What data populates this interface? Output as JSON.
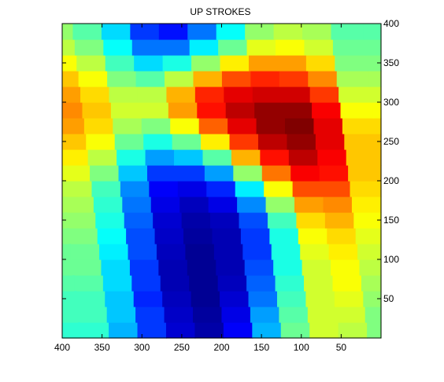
{
  "chart_data": {
    "type": "heatmap",
    "title": "UP STROKES",
    "xlabel": "",
    "ylabel": "",
    "colormap": "jet",
    "x_axis_reversed": true,
    "xlim": [
      400,
      0
    ],
    "ylim": [
      0,
      400
    ],
    "x_ticks": [
      400,
      350,
      300,
      250,
      200,
      150,
      100,
      50
    ],
    "y_ticks": [
      50,
      100,
      150,
      200,
      250,
      300,
      350,
      400
    ],
    "y_tick_labels_side": "right",
    "grid": false,
    "legend": "none",
    "field_description_units": "normalized value 0 (dark blue) to 1 (dark red)",
    "columns_x_centers": [
      382,
      346,
      310,
      274,
      238,
      202,
      166,
      130,
      94,
      58,
      22
    ],
    "rows_y_centers": [
      10,
      30,
      50,
      70,
      90,
      110,
      130,
      150,
      170,
      190,
      210,
      230,
      250,
      270,
      290,
      310,
      330,
      350,
      370,
      390
    ],
    "values": [
      [
        0.42,
        0.3,
        0.18,
        0.08,
        0.04,
        0.12,
        0.3,
        0.48,
        0.58,
        0.56,
        0.5
      ],
      [
        0.44,
        0.32,
        0.18,
        0.07,
        0.03,
        0.1,
        0.28,
        0.46,
        0.58,
        0.58,
        0.5
      ],
      [
        0.44,
        0.32,
        0.16,
        0.06,
        0.02,
        0.08,
        0.24,
        0.44,
        0.58,
        0.6,
        0.52
      ],
      [
        0.46,
        0.34,
        0.18,
        0.05,
        0.02,
        0.06,
        0.22,
        0.42,
        0.58,
        0.62,
        0.54
      ],
      [
        0.48,
        0.34,
        0.18,
        0.05,
        0.02,
        0.05,
        0.2,
        0.4,
        0.58,
        0.62,
        0.56
      ],
      [
        0.48,
        0.36,
        0.2,
        0.06,
        0.02,
        0.05,
        0.18,
        0.4,
        0.6,
        0.64,
        0.58
      ],
      [
        0.5,
        0.38,
        0.2,
        0.07,
        0.03,
        0.05,
        0.18,
        0.4,
        0.62,
        0.66,
        0.6
      ],
      [
        0.52,
        0.4,
        0.22,
        0.08,
        0.04,
        0.06,
        0.2,
        0.44,
        0.66,
        0.7,
        0.62
      ],
      [
        0.54,
        0.42,
        0.24,
        0.1,
        0.06,
        0.1,
        0.26,
        0.52,
        0.72,
        0.74,
        0.64
      ],
      [
        0.56,
        0.44,
        0.26,
        0.12,
        0.1,
        0.16,
        0.36,
        0.62,
        0.8,
        0.8,
        0.66
      ],
      [
        0.6,
        0.5,
        0.32,
        0.18,
        0.18,
        0.28,
        0.52,
        0.76,
        0.88,
        0.86,
        0.68
      ],
      [
        0.64,
        0.56,
        0.4,
        0.28,
        0.32,
        0.46,
        0.7,
        0.86,
        0.94,
        0.88,
        0.68
      ],
      [
        0.68,
        0.62,
        0.48,
        0.4,
        0.48,
        0.64,
        0.82,
        0.94,
        0.98,
        0.9,
        0.68
      ],
      [
        0.72,
        0.66,
        0.54,
        0.5,
        0.62,
        0.78,
        0.9,
        0.98,
        1.0,
        0.9,
        0.66
      ],
      [
        0.74,
        0.68,
        0.58,
        0.58,
        0.72,
        0.86,
        0.94,
        0.98,
        0.98,
        0.88,
        0.62
      ],
      [
        0.72,
        0.66,
        0.56,
        0.56,
        0.7,
        0.84,
        0.9,
        0.92,
        0.92,
        0.82,
        0.58
      ],
      [
        0.68,
        0.62,
        0.5,
        0.46,
        0.56,
        0.7,
        0.8,
        0.84,
        0.82,
        0.74,
        0.54
      ],
      [
        0.62,
        0.56,
        0.44,
        0.34,
        0.4,
        0.52,
        0.64,
        0.72,
        0.72,
        0.66,
        0.5
      ],
      [
        0.56,
        0.5,
        0.38,
        0.24,
        0.24,
        0.36,
        0.48,
        0.6,
        0.62,
        0.58,
        0.48
      ],
      [
        0.52,
        0.46,
        0.34,
        0.18,
        0.14,
        0.24,
        0.38,
        0.52,
        0.56,
        0.54,
        0.46
      ]
    ]
  }
}
